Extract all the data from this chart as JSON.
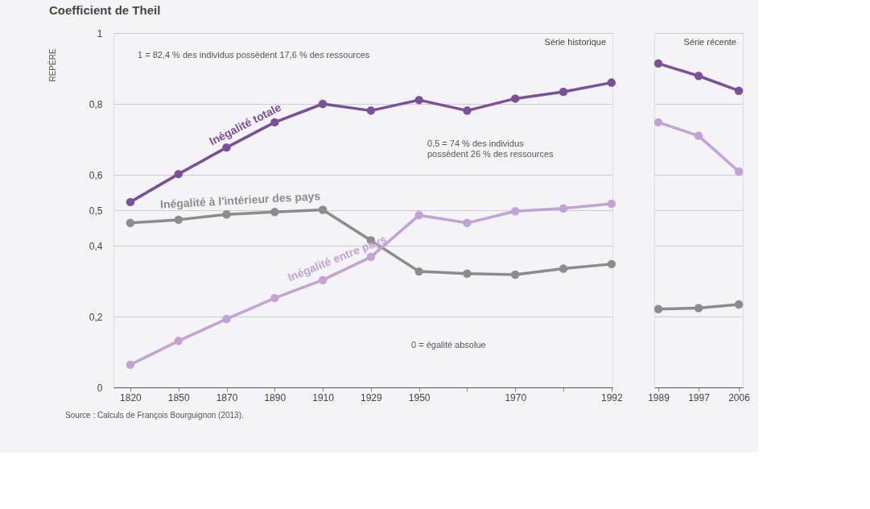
{
  "chart_data": [
    {
      "type": "line",
      "title": "Coefficient de Theil",
      "subtitle": "Série historique",
      "categories": [
        "1820",
        "1850",
        "1870",
        "1890",
        "1910",
        "1929",
        "1950",
        null,
        "1970",
        null,
        "1992"
      ],
      "series": [
        {
          "name": "Inégalité totale",
          "color": "#7b4f9a",
          "values": [
            0.523,
            0.602,
            0.677,
            0.748,
            0.8,
            0.781,
            0.811,
            0.781,
            0.815,
            0.834,
            0.86
          ]
        },
        {
          "name": "Inégalité à l'intérieur des pays",
          "color": "#8c8c8c",
          "values": [
            0.464,
            0.473,
            0.488,
            0.495,
            0.501,
            0.415,
            0.327,
            0.321,
            0.318,
            0.335,
            0.348
          ]
        },
        {
          "name": "Inégalité entre pays",
          "color": "#c3a3d6",
          "values": [
            0.064,
            0.131,
            0.193,
            0.252,
            0.303,
            0.368,
            0.486,
            0.464,
            0.497,
            0.505,
            0.518
          ]
        }
      ],
      "ylim": [
        0,
        1
      ],
      "yticks": [
        0,
        {
          "value": 0.2,
          "label": "0,2"
        },
        {
          "value": 0.4,
          "label": "0,4"
        },
        {
          "value": 0.5,
          "label": "0,5"
        },
        {
          "value": 0.6,
          "label": "0,6"
        },
        {
          "value": 0.8,
          "label": "0,8"
        },
        1
      ],
      "grid": "y",
      "marker": "circle",
      "line_style": "solid",
      "annotations": [
        "1 = 82,4 % des individus possèdent 17,6 % des ressources",
        "0,5 = 74 % des individus\npossèdent 26 % des ressources",
        "0 = égalité absolue",
        "Source : Calculs de François Bourguignon (2013).",
        "REPÈRE"
      ]
    },
    {
      "type": "line",
      "subtitle": "Série récente",
      "categories": [
        "1989",
        "1997",
        "2006"
      ],
      "series": [
        {
          "color": "#7b4f9a",
          "values": [
            0.914,
            0.879,
            0.837
          ]
        },
        {
          "color": "#8c8c8c",
          "values": [
            0.221,
            0.224,
            0.234
          ]
        },
        {
          "color": "#c3a3d6",
          "values": [
            0.748,
            0.71,
            0.609
          ]
        }
      ],
      "ylim": [
        0,
        1
      ],
      "yticks": [
        {
          "value": 0,
          "label": null
        },
        {
          "value": 0.2,
          "label": null
        },
        {
          "value": 0.4,
          "label": null
        },
        {
          "value": 0.5,
          "label": null
        },
        {
          "value": 0.6,
          "label": null
        },
        {
          "value": 0.8,
          "label": null
        },
        {
          "value": 1,
          "label": null
        }
      ],
      "grid": "y",
      "marker": "circle",
      "line_style": "solid",
      "tick_labels": "x"
    }
  ]
}
